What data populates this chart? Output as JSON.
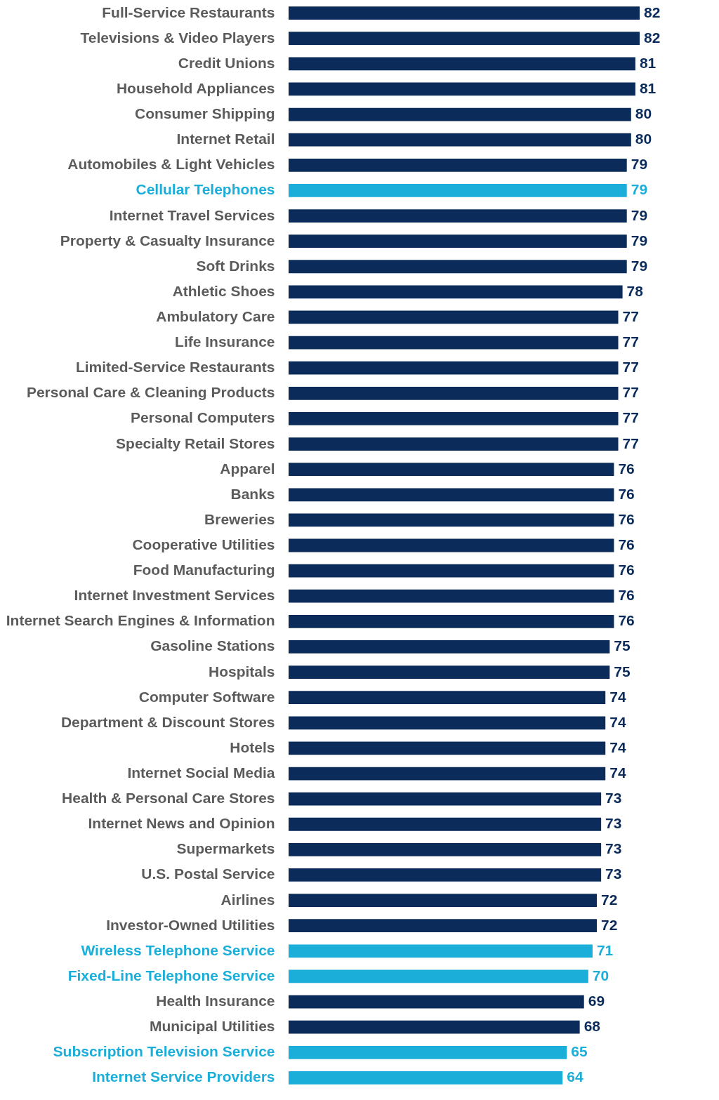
{
  "chart_data": {
    "type": "bar",
    "orientation": "horizontal",
    "data_labels": true,
    "categories": [
      "Full-Service Restaurants",
      "Televisions & Video Players",
      "Credit Unions",
      "Household Appliances",
      "Consumer Shipping",
      "Internet Retail",
      "Automobiles & Light Vehicles",
      "Cellular Telephones",
      "Internet Travel Services",
      "Property & Casualty Insurance",
      "Soft Drinks",
      "Athletic Shoes",
      "Ambulatory Care",
      "Life Insurance",
      "Limited-Service Restaurants",
      "Personal Care & Cleaning Products",
      "Personal Computers",
      "Specialty Retail Stores",
      "Apparel",
      "Banks",
      "Breweries",
      "Cooperative Utilities",
      "Food Manufacturing",
      "Internet Investment Services",
      "Internet Search Engines & Information",
      "Gasoline Stations",
      "Hospitals",
      "Computer Software",
      "Department & Discount Stores",
      "Hotels",
      "Internet Social Media",
      "Health & Personal Care Stores",
      "Internet News and Opinion",
      "Supermarkets",
      "U.S. Postal Service",
      "Airlines",
      "Investor-Owned Utilities",
      "Wireless Telephone Service",
      "Fixed-Line Telephone Service",
      "Health Insurance",
      "Municipal Utilities",
      "Subscription Television Service",
      "Internet Service Providers"
    ],
    "values": [
      82,
      82,
      81,
      81,
      80,
      80,
      79,
      79,
      79,
      79,
      79,
      78,
      77,
      77,
      77,
      77,
      77,
      77,
      76,
      76,
      76,
      76,
      76,
      76,
      76,
      75,
      75,
      74,
      74,
      74,
      74,
      73,
      73,
      73,
      73,
      72,
      72,
      71,
      70,
      69,
      68,
      65,
      64
    ],
    "colors": [
      "#0b2c5a",
      "#0b2c5a",
      "#0b2c5a",
      "#0b2c5a",
      "#0b2c5a",
      "#0b2c5a",
      "#0b2c5a",
      "#1aaed9",
      "#0b2c5a",
      "#0b2c5a",
      "#0b2c5a",
      "#0b2c5a",
      "#0b2c5a",
      "#0b2c5a",
      "#0b2c5a",
      "#0b2c5a",
      "#0b2c5a",
      "#0b2c5a",
      "#0b2c5a",
      "#0b2c5a",
      "#0b2c5a",
      "#0b2c5a",
      "#0b2c5a",
      "#0b2c5a",
      "#0b2c5a",
      "#0b2c5a",
      "#0b2c5a",
      "#0b2c5a",
      "#0b2c5a",
      "#0b2c5a",
      "#0b2c5a",
      "#0b2c5a",
      "#0b2c5a",
      "#0b2c5a",
      "#0b2c5a",
      "#0b2c5a",
      "#0b2c5a",
      "#1aaed9",
      "#1aaed9",
      "#0b2c5a",
      "#0b2c5a",
      "#1aaed9",
      "#1aaed9"
    ]
  }
}
